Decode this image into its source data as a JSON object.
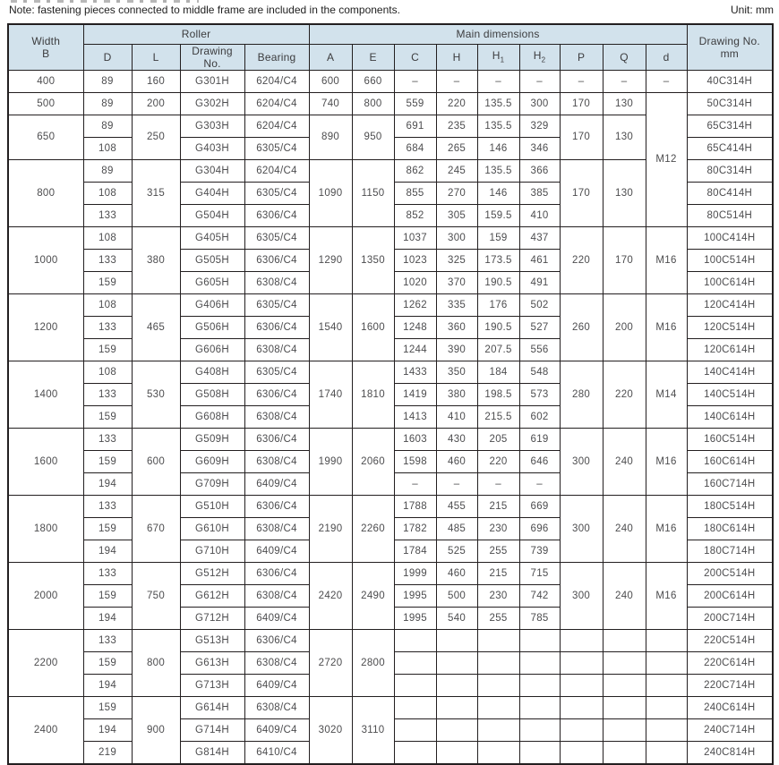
{
  "note": "Note: fastening pieces connected to middle frame are included in the components.",
  "unit_label": "Unit: mm",
  "colors": {
    "header_bg": "#d2e2ec",
    "border": "#231f20",
    "text": "#4d4d4f"
  },
  "table": {
    "header": {
      "width_b": "Width\nB",
      "roller": "Roller",
      "main_dimensions": "Main dimensions",
      "drawing_no_mm": "Drawing No.\nmm",
      "columns": [
        {
          "t": "D"
        },
        {
          "t": "L"
        },
        {
          "t": "Drawing\nNo."
        },
        {
          "t": "Bearing"
        },
        {
          "t": "A"
        },
        {
          "t": "E"
        },
        {
          "t": "C"
        },
        {
          "t": "H"
        },
        {
          "t": "H",
          "sub": "1"
        },
        {
          "t": "H",
          "sub": "2"
        },
        {
          "t": "P"
        },
        {
          "t": "Q"
        },
        {
          "t": "d"
        }
      ]
    },
    "rows": [
      [
        "400",
        "89",
        "160",
        "G301H",
        "6204/C4",
        "600",
        "660",
        "–",
        "–",
        "–",
        "–",
        "–",
        "–",
        "–",
        "40C314H"
      ],
      [
        "500",
        "89",
        "200",
        "G302H",
        "6204/C4",
        "740",
        "800",
        "559",
        "220",
        "135.5",
        "300",
        "170",
        "130",
        {
          "v": "M12",
          "rs": 6
        },
        "50C314H"
      ],
      [
        {
          "v": "650",
          "rs": 2
        },
        "89",
        {
          "v": "250",
          "rs": 2
        },
        "G303H",
        "6204/C4",
        {
          "v": "890",
          "rs": 2
        },
        {
          "v": "950",
          "rs": 2
        },
        "691",
        "235",
        "135.5",
        "329",
        {
          "v": "170",
          "rs": 2
        },
        {
          "v": "130",
          "rs": 2
        },
        null,
        "65C314H"
      ],
      [
        null,
        "108",
        null,
        "G403H",
        "6305/C4",
        null,
        null,
        "684",
        "265",
        "146",
        "346",
        null,
        null,
        null,
        "65C414H"
      ],
      [
        {
          "v": "800",
          "rs": 3
        },
        "89",
        {
          "v": "315",
          "rs": 3
        },
        "G304H",
        "6204/C4",
        {
          "v": "1090",
          "rs": 3
        },
        {
          "v": "1150",
          "rs": 3
        },
        "862",
        "245",
        "135.5",
        "366",
        {
          "v": "170",
          "rs": 3
        },
        {
          "v": "130",
          "rs": 3
        },
        null,
        "80C314H"
      ],
      [
        null,
        "108",
        null,
        "G404H",
        "6305/C4",
        null,
        null,
        "855",
        "270",
        "146",
        "385",
        null,
        null,
        null,
        "80C414H"
      ],
      [
        null,
        "133",
        null,
        "G504H",
        "6306/C4",
        null,
        null,
        "852",
        "305",
        "159.5",
        "410",
        null,
        null,
        null,
        "80C514H"
      ],
      [
        {
          "v": "1000",
          "rs": 3
        },
        "108",
        {
          "v": "380",
          "rs": 3
        },
        "G405H",
        "6305/C4",
        {
          "v": "1290",
          "rs": 3
        },
        {
          "v": "1350",
          "rs": 3
        },
        "1037",
        "300",
        "159",
        "437",
        {
          "v": "220",
          "rs": 3
        },
        {
          "v": "170",
          "rs": 3
        },
        {
          "v": "M16",
          "rs": 3
        },
        "100C414H"
      ],
      [
        null,
        "133",
        null,
        "G505H",
        "6306/C4",
        null,
        null,
        "1023",
        "325",
        "173.5",
        "461",
        null,
        null,
        null,
        "100C514H"
      ],
      [
        null,
        "159",
        null,
        "G605H",
        "6308/C4",
        null,
        null,
        "1020",
        "370",
        "190.5",
        "491",
        null,
        null,
        null,
        "100C614H"
      ],
      [
        {
          "v": "1200",
          "rs": 3
        },
        "108",
        {
          "v": "465",
          "rs": 3
        },
        "G406H",
        "6305/C4",
        {
          "v": "1540",
          "rs": 3
        },
        {
          "v": "1600",
          "rs": 3
        },
        "1262",
        "335",
        "176",
        "502",
        {
          "v": "260",
          "rs": 3
        },
        {
          "v": "200",
          "rs": 3
        },
        {
          "v": "M16",
          "rs": 3
        },
        "120C414H"
      ],
      [
        null,
        "133",
        null,
        "G506H",
        "6306/C4",
        null,
        null,
        "1248",
        "360",
        "190.5",
        "527",
        null,
        null,
        null,
        "120C514H"
      ],
      [
        null,
        "159",
        null,
        "G606H",
        "6308/C4",
        null,
        null,
        "1244",
        "390",
        "207.5",
        "556",
        null,
        null,
        null,
        "120C614H"
      ],
      [
        {
          "v": "1400",
          "rs": 3
        },
        "108",
        {
          "v": "530",
          "rs": 3
        },
        "G408H",
        "6305/C4",
        {
          "v": "1740",
          "rs": 3
        },
        {
          "v": "1810",
          "rs": 3
        },
        "1433",
        "350",
        "184",
        "548",
        {
          "v": "280",
          "rs": 3
        },
        {
          "v": "220",
          "rs": 3
        },
        {
          "v": "M14",
          "rs": 3
        },
        "140C414H"
      ],
      [
        null,
        "133",
        null,
        "G508H",
        "6306/C4",
        null,
        null,
        "1419",
        "380",
        "198.5",
        "573",
        null,
        null,
        null,
        "140C514H"
      ],
      [
        null,
        "159",
        null,
        "G608H",
        "6308/C4",
        null,
        null,
        "1413",
        "410",
        "215.5",
        "602",
        null,
        null,
        null,
        "140C614H"
      ],
      [
        {
          "v": "1600",
          "rs": 3
        },
        "133",
        {
          "v": "600",
          "rs": 3
        },
        "G509H",
        "6306/C4",
        {
          "v": "1990",
          "rs": 3
        },
        {
          "v": "2060",
          "rs": 3
        },
        "1603",
        "430",
        "205",
        "619",
        {
          "v": "300",
          "rs": 3
        },
        {
          "v": "240",
          "rs": 3
        },
        {
          "v": "M16",
          "rs": 3
        },
        "160C514H"
      ],
      [
        null,
        "159",
        null,
        "G609H",
        "6308/C4",
        null,
        null,
        "1598",
        "460",
        "220",
        "646",
        null,
        null,
        null,
        "160C614H"
      ],
      [
        null,
        "194",
        null,
        "G709H",
        "6409/C4",
        null,
        null,
        "–",
        "–",
        "–",
        "–",
        null,
        null,
        null,
        "160C714H"
      ],
      [
        {
          "v": "1800",
          "rs": 3
        },
        "133",
        {
          "v": "670",
          "rs": 3
        },
        "G510H",
        "6306/C4",
        {
          "v": "2190",
          "rs": 3
        },
        {
          "v": "2260",
          "rs": 3
        },
        "1788",
        "455",
        "215",
        "669",
        {
          "v": "300",
          "rs": 3
        },
        {
          "v": "240",
          "rs": 3
        },
        {
          "v": "M16",
          "rs": 3
        },
        "180C514H"
      ],
      [
        null,
        "159",
        null,
        "G610H",
        "6308/C4",
        null,
        null,
        "1782",
        "485",
        "230",
        "696",
        null,
        null,
        null,
        "180C614H"
      ],
      [
        null,
        "194",
        null,
        "G710H",
        "6409/C4",
        null,
        null,
        "1784",
        "525",
        "255",
        "739",
        null,
        null,
        null,
        "180C714H"
      ],
      [
        {
          "v": "2000",
          "rs": 3
        },
        "133",
        {
          "v": "750",
          "rs": 3
        },
        "G512H",
        "6306/C4",
        {
          "v": "2420",
          "rs": 3
        },
        {
          "v": "2490",
          "rs": 3
        },
        "1999",
        "460",
        "215",
        "715",
        {
          "v": "300",
          "rs": 3
        },
        {
          "v": "240",
          "rs": 3
        },
        {
          "v": "M16",
          "rs": 3
        },
        "200C514H"
      ],
      [
        null,
        "159",
        null,
        "G612H",
        "6308/C4",
        null,
        null,
        "1995",
        "500",
        "230",
        "742",
        null,
        null,
        null,
        "200C614H"
      ],
      [
        null,
        "194",
        null,
        "G712H",
        "6409/C4",
        null,
        null,
        "1995",
        "540",
        "255",
        "785",
        null,
        null,
        null,
        "200C714H"
      ],
      [
        {
          "v": "2200",
          "rs": 3
        },
        "133",
        {
          "v": "800",
          "rs": 3
        },
        "G513H",
        "6306/C4",
        {
          "v": "2720",
          "rs": 3
        },
        {
          "v": "2800",
          "rs": 3
        },
        "",
        "",
        "",
        "",
        "",
        "",
        "",
        "220C514H"
      ],
      [
        null,
        "159",
        null,
        "G613H",
        "6308/C4",
        null,
        null,
        "",
        "",
        "",
        "",
        "",
        "",
        "",
        "220C614H"
      ],
      [
        null,
        "194",
        null,
        "G713H",
        "6409/C4",
        null,
        null,
        "",
        "",
        "",
        "",
        "",
        "",
        "",
        "220C714H"
      ],
      [
        {
          "v": "2400",
          "rs": 3
        },
        "159",
        {
          "v": "900",
          "rs": 3
        },
        "G614H",
        "6308/C4",
        {
          "v": "3020",
          "rs": 3
        },
        {
          "v": "3110",
          "rs": 3
        },
        "",
        "",
        "",
        "",
        "",
        "",
        "",
        "240C614H"
      ],
      [
        null,
        "194",
        null,
        "G714H",
        "6409/C4",
        null,
        null,
        "",
        "",
        "",
        "",
        "",
        "",
        "",
        "240C714H"
      ],
      [
        null,
        "219",
        null,
        "G814H",
        "6410/C4",
        null,
        null,
        "",
        "",
        "",
        "",
        "",
        "",
        "",
        "240C814H"
      ]
    ]
  }
}
